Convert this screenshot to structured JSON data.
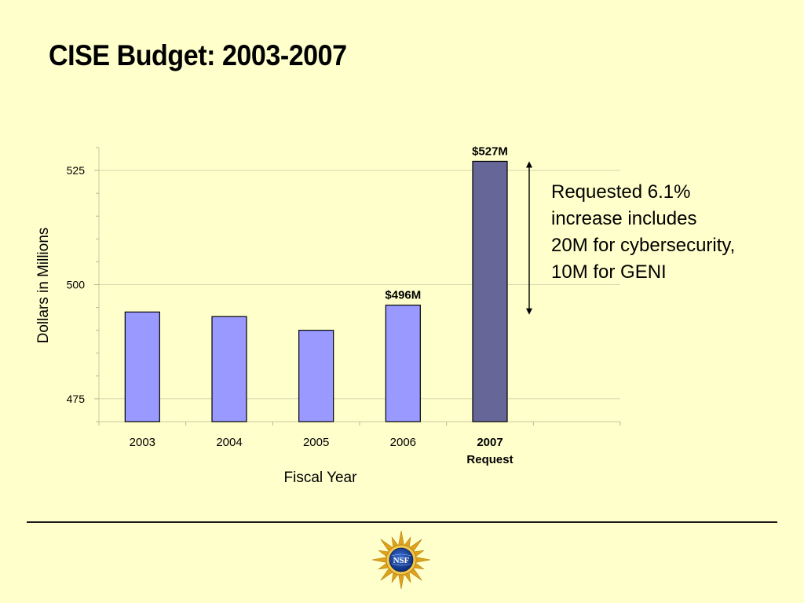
{
  "slide": {
    "title": "CISE Budget: 2003-2007",
    "annotation_lines": [
      "Requested 6.1%",
      "increase includes",
      "20M for cybersecurity,",
      "10M for GENI"
    ],
    "logo_text": "NSF"
  },
  "chart_data": {
    "type": "bar",
    "title": "",
    "xlabel": "Fiscal Year",
    "ylabel": "Dollars in Millions",
    "ylim": [
      470,
      530
    ],
    "yticks": [
      475,
      500,
      525
    ],
    "grid": true,
    "categories": [
      {
        "label": "2003",
        "sublabel": "",
        "bold": false
      },
      {
        "label": "2004",
        "sublabel": "",
        "bold": false
      },
      {
        "label": "2005",
        "sublabel": "",
        "bold": false
      },
      {
        "label": "2006",
        "sublabel": "",
        "bold": false
      },
      {
        "label": "2007",
        "sublabel": "Request",
        "bold": true
      }
    ],
    "values": [
      494,
      493,
      490,
      495.5,
      527
    ],
    "data_labels": [
      "",
      "",
      "",
      "$496M",
      "$527M"
    ],
    "colors": [
      "#9999ff",
      "#9999ff",
      "#9999ff",
      "#9999ff",
      "#666699"
    ],
    "increase_arrow": {
      "from": 496,
      "to": 527
    }
  },
  "colors": {
    "background": "#ffffcc",
    "bar": "#9999ff",
    "bar_request": "#666699",
    "gridline": "#d8d8b0"
  }
}
